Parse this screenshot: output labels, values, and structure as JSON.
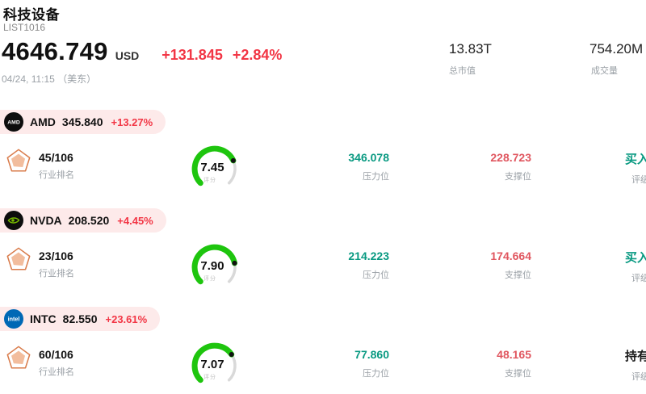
{
  "colors": {
    "accent_red": "#f23645",
    "pill_bg": "#fdeaea",
    "resistance_teal": "#089981",
    "support_red": "#e0565f",
    "gauge_green": "#1ec50e",
    "gauge_rest": "#d9d9d9"
  },
  "header": {
    "title": "科技设备",
    "list_id": "LIST1016",
    "price": "4646.749",
    "currency": "USD",
    "change_abs": "+131.845",
    "change_pct": "+2.84%",
    "timestamp": "04/24, 11:15 （美东）",
    "market_cap_value": "13.83T",
    "market_cap_label": "总市值",
    "volume_value": "754.20M",
    "volume_label": "成交量"
  },
  "labels": {
    "rank": "行业排名",
    "score": "评分",
    "resistance": "压力位",
    "support": "支撑位",
    "rating": "评级"
  },
  "stocks": [
    {
      "ticker": "AMD",
      "price": "345.840",
      "change": "+13.27%",
      "logo_text": "AMD",
      "rank": "45/106",
      "score": "7.45",
      "resistance": "346.078",
      "support": "228.723",
      "rating": "买入",
      "rating_color": "#089981"
    },
    {
      "ticker": "NVDA",
      "price": "208.520",
      "change": "+4.45%",
      "rank": "23/106",
      "score": "7.90",
      "resistance": "214.223",
      "support": "174.664",
      "rating": "买入",
      "rating_color": "#089981"
    },
    {
      "ticker": "INTC",
      "price": "82.550",
      "change": "+23.61%",
      "logo_text": "intel",
      "rank": "60/106",
      "score": "7.07",
      "resistance": "77.860",
      "support": "48.165",
      "rating": "持有",
      "rating_color": "#1a1a1a"
    }
  ]
}
